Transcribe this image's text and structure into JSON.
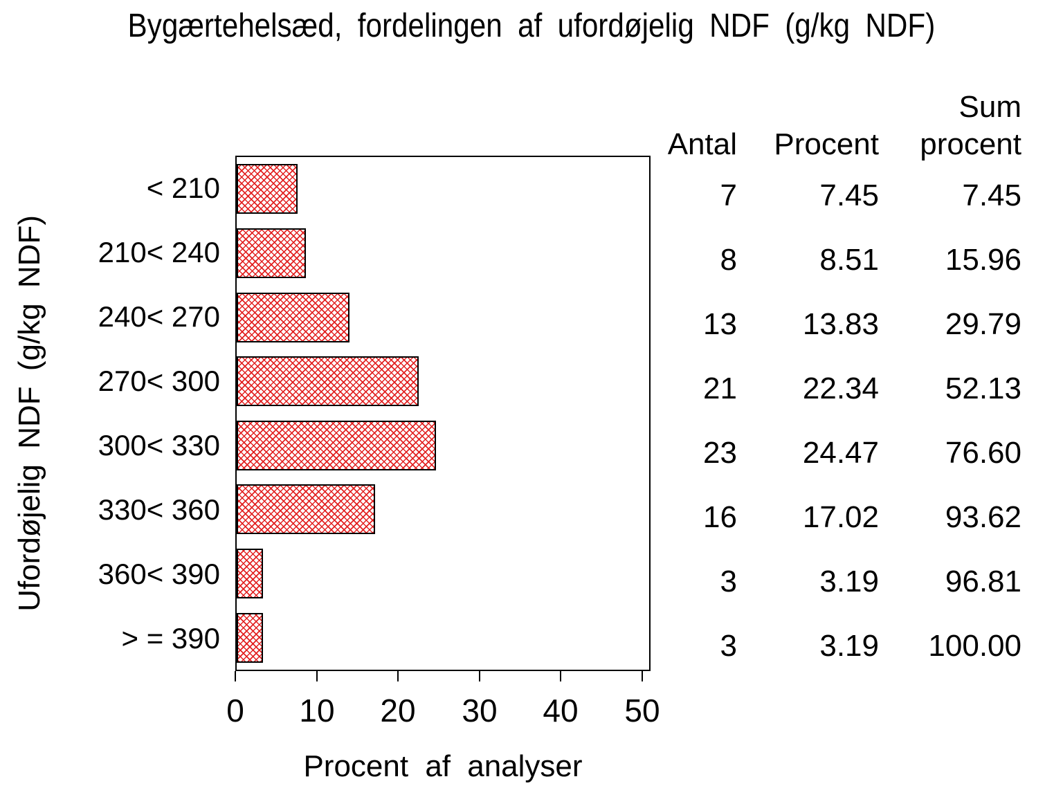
{
  "title": "Bygærtehelsæd, fordelingen af ufordøjelig NDF (g/kg NDF)",
  "chart_data": {
    "type": "bar",
    "orientation": "horizontal",
    "title": "Bygærtehelsæd, fordelingen af ufordøjelig NDF (g/kg NDF)",
    "xlabel": "Procent af analyser",
    "ylabel": "Ufordøjelig NDF (g/kg NDF)",
    "categories": [
      "< 210",
      "210< 240",
      "240< 270",
      "270< 300",
      "300< 330",
      "330< 360",
      "360< 390",
      "> = 390"
    ],
    "series": [
      {
        "name": "Antal",
        "values": [
          7,
          8,
          13,
          21,
          23,
          16,
          3,
          3
        ]
      },
      {
        "name": "Procent",
        "values": [
          7.45,
          8.51,
          13.83,
          22.34,
          24.47,
          17.02,
          3.19,
          3.19
        ]
      },
      {
        "name": "Sum procent",
        "values": [
          7.45,
          15.96,
          29.79,
          52.13,
          76.6,
          93.62,
          96.81,
          100.0
        ]
      }
    ],
    "plotted_series": "Procent",
    "xlim": [
      0,
      51
    ],
    "x_ticks": [
      "0",
      "10",
      "20",
      "30",
      "40",
      "50"
    ],
    "grid": false,
    "bar_pattern": "red-diagonal-crosshatch",
    "bar_color": "#e22020",
    "bar_border_color": "#000000"
  },
  "table": {
    "header": {
      "antal": "Antal",
      "procent": "Procent",
      "sum_line1": "Sum",
      "sum_line2": "procent"
    },
    "rows": [
      {
        "antal": "7",
        "procent": "7.45",
        "sum": "7.45"
      },
      {
        "antal": "8",
        "procent": "8.51",
        "sum": "15.96"
      },
      {
        "antal": "13",
        "procent": "13.83",
        "sum": "29.79"
      },
      {
        "antal": "21",
        "procent": "22.34",
        "sum": "52.13"
      },
      {
        "antal": "23",
        "procent": "24.47",
        "sum": "76.60"
      },
      {
        "antal": "16",
        "procent": "17.02",
        "sum": "93.62"
      },
      {
        "antal": "3",
        "procent": "3.19",
        "sum": "96.81"
      },
      {
        "antal": "3",
        "procent": "3.19",
        "sum": "100.00"
      }
    ]
  }
}
